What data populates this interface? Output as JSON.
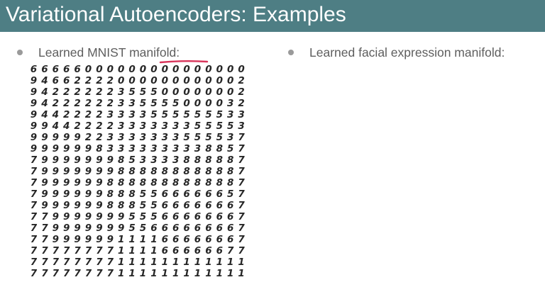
{
  "title": "Variational Autoencoders: Examples",
  "bullets": {
    "left": "Learned MNIST manifold:",
    "right": "Learned facial expression manifold:"
  },
  "icons": {
    "bullet": "bullet-dot-icon",
    "underline": "red-underline-stroke"
  },
  "colors": {
    "title_bar": "#4e7e84",
    "title_text": "#ffffff",
    "bullet_text": "#5e5e5e",
    "digit_ink": "#262626",
    "annotation": "#d8345a"
  },
  "mnist_grid": [
    "66666000000000000000",
    "94662222000000000002",
    "94222222355500000002",
    "94222222335555000032",
    "94422223333555555533",
    "99442222333333355553",
    "99999223333333555537",
    "99999983333333338857",
    "79999999853333888887",
    "79999999888888888887",
    "79999998888888888887",
    "79999998885566666657",
    "79999998885566666667",
    "77999999955566666667",
    "77999999955666666667",
    "77999999111166666667",
    "77777777111166666677",
    "77777777111111111111",
    "77777777111111111111"
  ]
}
